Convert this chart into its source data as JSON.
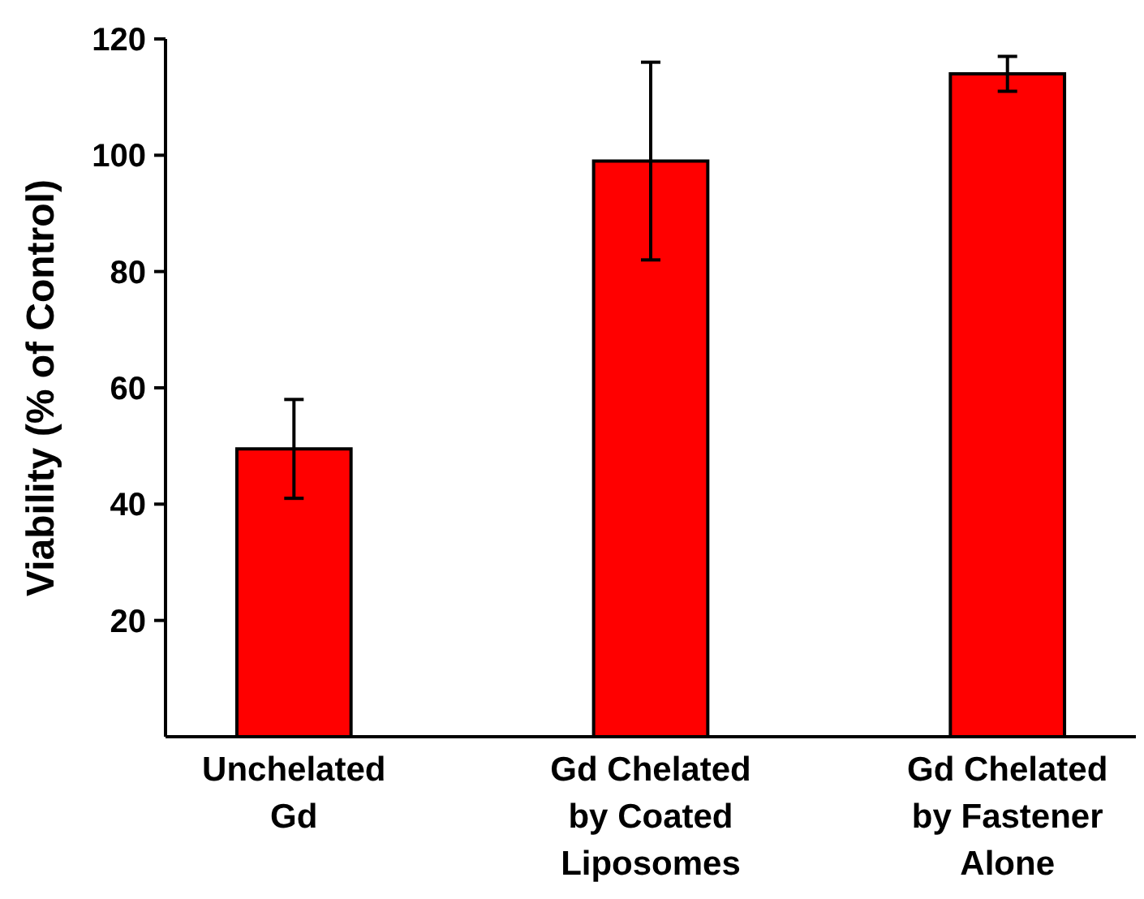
{
  "chart_data": {
    "type": "bar",
    "ylabel": "Viability (% of Control)",
    "categories": [
      "Unchelated Gd",
      "Gd Chelated by Coated Liposomes",
      "Gd Chelated by Fastener Alone"
    ],
    "values": [
      49.5,
      99,
      114
    ],
    "errors": [
      8.5,
      17,
      3
    ],
    "color": "#ff0000",
    "ylim": [
      0,
      120
    ],
    "yticks": [
      20,
      40,
      60,
      80,
      100,
      120
    ],
    "grid": false
  }
}
